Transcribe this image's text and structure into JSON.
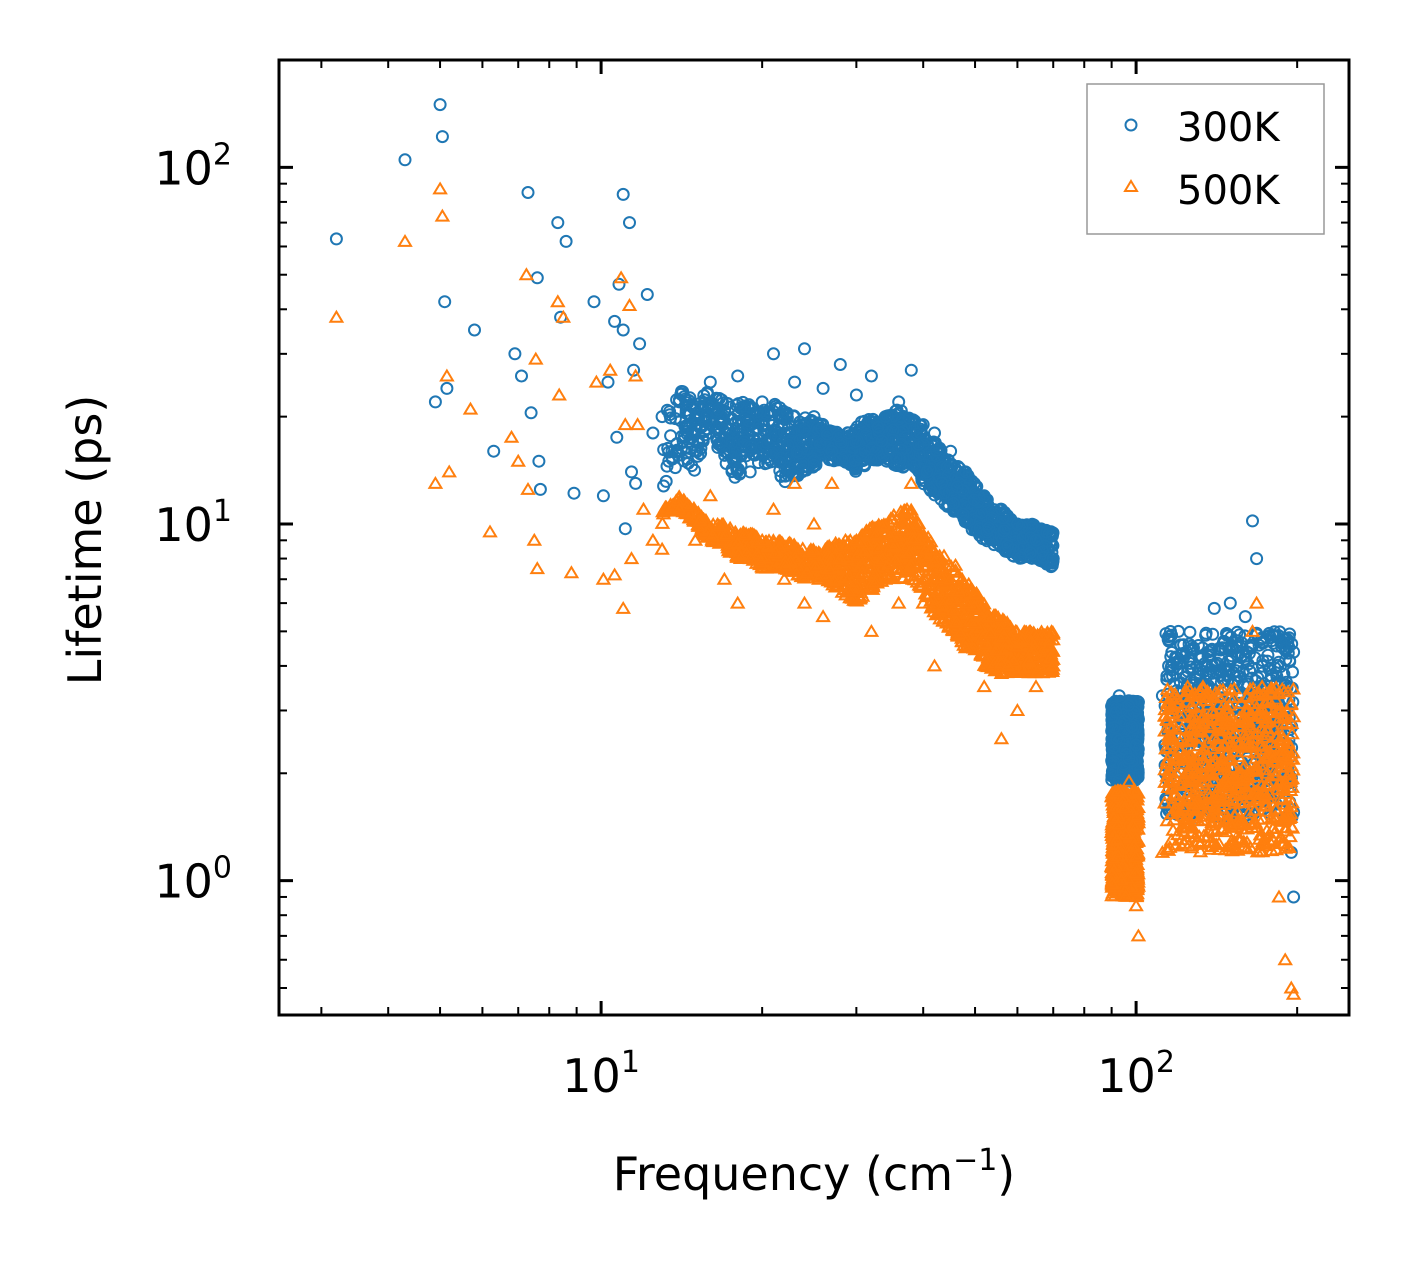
{
  "chart_data": {
    "type": "scatter",
    "xlabel": "Frequency (cm",
    "xlabel_sup": "−1",
    "xlabel_end": ")",
    "ylabel": "Lifetime (ps)",
    "xscale": "log",
    "yscale": "log",
    "xlim": [
      2.5,
      250
    ],
    "ylim": [
      0.42,
      200
    ],
    "x_ticks": [
      {
        "base": "10",
        "exp": "1",
        "value": 10
      },
      {
        "base": "10",
        "exp": "2",
        "value": 100
      }
    ],
    "y_ticks": [
      {
        "base": "10",
        "exp": "0",
        "value": 1
      },
      {
        "base": "10",
        "exp": "1",
        "value": 10
      },
      {
        "base": "10",
        "exp": "2",
        "value": 100
      }
    ],
    "legend_position": "top-right",
    "series": [
      {
        "name": "300K",
        "marker": "circle",
        "color": "#1f77b4",
        "points": [
          [
            3.2,
            63
          ],
          [
            4.3,
            105
          ],
          [
            4.9,
            22
          ],
          [
            5.0,
            150
          ],
          [
            5.05,
            122
          ],
          [
            5.1,
            42
          ],
          [
            5.15,
            24
          ],
          [
            5.8,
            35
          ],
          [
            6.3,
            16
          ],
          [
            6.9,
            30
          ],
          [
            7.1,
            26
          ],
          [
            7.3,
            85
          ],
          [
            7.4,
            20.5
          ],
          [
            7.6,
            49
          ],
          [
            7.65,
            15
          ],
          [
            7.7,
            12.5
          ],
          [
            8.3,
            70
          ],
          [
            8.4,
            38
          ],
          [
            8.6,
            62
          ],
          [
            8.9,
            12.2
          ],
          [
            9.7,
            42
          ],
          [
            10.1,
            12
          ],
          [
            10.3,
            25
          ],
          [
            10.6,
            37
          ],
          [
            10.7,
            17.5
          ],
          [
            10.8,
            47
          ],
          [
            11.0,
            84
          ],
          [
            11.0,
            35
          ],
          [
            11.1,
            9.7
          ],
          [
            11.3,
            70
          ],
          [
            11.4,
            14
          ],
          [
            11.5,
            27
          ],
          [
            11.6,
            13
          ],
          [
            11.8,
            32
          ],
          [
            12.2,
            44
          ],
          [
            12.5,
            18
          ],
          [
            13,
            20
          ],
          [
            14,
            22
          ],
          [
            15,
            19
          ],
          [
            16,
            25
          ],
          [
            17,
            16
          ],
          [
            18,
            26
          ],
          [
            19,
            14
          ],
          [
            20,
            22
          ],
          [
            21,
            30
          ],
          [
            22,
            18
          ],
          [
            23,
            25
          ],
          [
            24,
            31
          ],
          [
            25,
            20
          ],
          [
            26,
            24
          ],
          [
            27,
            16
          ],
          [
            28,
            28
          ],
          [
            29,
            18
          ],
          [
            30,
            23
          ],
          [
            32,
            26
          ],
          [
            34,
            20
          ],
          [
            36,
            22
          ],
          [
            38,
            27
          ],
          [
            40,
            19
          ],
          [
            42,
            18
          ],
          [
            45,
            16
          ],
          [
            48,
            14
          ],
          [
            52,
            12
          ],
          [
            56,
            11
          ],
          [
            60,
            10
          ],
          [
            65,
            9
          ],
          [
            68,
            9.5
          ],
          [
            70,
            8
          ],
          [
            92,
            2.5
          ],
          [
            93,
            3.3
          ],
          [
            95,
            2.8
          ],
          [
            97,
            2.2
          ],
          [
            100,
            2.4
          ],
          [
            112,
            3.3
          ],
          [
            115,
            4
          ],
          [
            118,
            3
          ],
          [
            120,
            5
          ],
          [
            125,
            3.5
          ],
          [
            130,
            4
          ],
          [
            135,
            3.8
          ],
          [
            140,
            5.8
          ],
          [
            145,
            4.5
          ],
          [
            150,
            6
          ],
          [
            155,
            4
          ],
          [
            160,
            5.5
          ],
          [
            165,
            10.2
          ],
          [
            168,
            8
          ],
          [
            172,
            4.8
          ],
          [
            176,
            3.5
          ],
          [
            180,
            2.8
          ],
          [
            185,
            2.4
          ],
          [
            190,
            1.6
          ],
          [
            195,
            1.2
          ],
          [
            197,
            0.9
          ]
        ],
        "bands": [
          [
            [
              13,
              12
            ],
            [
              14,
              15
            ],
            [
              15,
              14
            ],
            [
              16,
              18
            ],
            [
              17,
              15
            ],
            [
              18,
              13
            ],
            [
              19,
              16
            ],
            [
              20,
              14
            ],
            [
              21,
              15
            ],
            [
              22,
              13
            ],
            [
              24,
              14
            ],
            [
              26,
              15
            ],
            [
              28,
              15
            ],
            [
              30,
              14
            ],
            [
              32,
              15
            ],
            [
              34,
              15
            ],
            [
              36,
              14
            ],
            [
              38,
              15
            ],
            [
              40,
              13
            ],
            [
              42,
              12
            ],
            [
              45,
              11
            ],
            [
              48,
              10
            ],
            [
              52,
              9
            ],
            [
              56,
              8.5
            ],
            [
              60,
              8
            ],
            [
              65,
              8
            ],
            [
              70,
              7.5
            ]
          ],
          [
            [
              13,
              20
            ],
            [
              14,
              24
            ],
            [
              15,
              22
            ],
            [
              16,
              24
            ],
            [
              17,
              22
            ],
            [
              18,
              22
            ],
            [
              19,
              22
            ],
            [
              20,
              21
            ],
            [
              21,
              22
            ],
            [
              22,
              21
            ],
            [
              24,
              20
            ],
            [
              26,
              19
            ],
            [
              28,
              18
            ],
            [
              30,
              19
            ],
            [
              32,
              20
            ],
            [
              34,
              20
            ],
            [
              36,
              21
            ],
            [
              38,
              20
            ],
            [
              40,
              19
            ],
            [
              42,
              17
            ],
            [
              45,
              15
            ],
            [
              48,
              14
            ],
            [
              52,
              12
            ],
            [
              56,
              11
            ],
            [
              60,
              10
            ],
            [
              65,
              10
            ],
            [
              70,
              9.5
            ]
          ]
        ],
        "clusters": [
          {
            "x": [
              90,
              101
            ],
            "y": [
              1.9,
              3.2
            ]
          },
          {
            "x": [
              113,
              197
            ],
            "y": [
              1.5,
              5.0
            ]
          }
        ]
      },
      {
        "name": "500K",
        "marker": "triangle",
        "color": "#ff7f0e",
        "points": [
          [
            3.2,
            38
          ],
          [
            4.3,
            62
          ],
          [
            4.9,
            13
          ],
          [
            5.0,
            87
          ],
          [
            5.05,
            73
          ],
          [
            5.15,
            26
          ],
          [
            5.2,
            14
          ],
          [
            5.7,
            21
          ],
          [
            6.2,
            9.5
          ],
          [
            6.8,
            17.5
          ],
          [
            7.0,
            15
          ],
          [
            7.25,
            50
          ],
          [
            7.3,
            12.5
          ],
          [
            7.5,
            9
          ],
          [
            7.55,
            29
          ],
          [
            7.6,
            7.5
          ],
          [
            8.3,
            42
          ],
          [
            8.35,
            23
          ],
          [
            8.5,
            38
          ],
          [
            8.8,
            7.3
          ],
          [
            9.8,
            25
          ],
          [
            10.1,
            7
          ],
          [
            10.4,
            27
          ],
          [
            10.6,
            7.2
          ],
          [
            10.9,
            49
          ],
          [
            11.0,
            5.8
          ],
          [
            11.1,
            19
          ],
          [
            11.3,
            41
          ],
          [
            11.4,
            8
          ],
          [
            11.6,
            26
          ],
          [
            11.7,
            19
          ],
          [
            12.0,
            11
          ],
          [
            12.5,
            9
          ],
          [
            13,
            8.5
          ],
          [
            14,
            11
          ],
          [
            15,
            9
          ],
          [
            16,
            12
          ],
          [
            17,
            7
          ],
          [
            18,
            6
          ],
          [
            19,
            8
          ],
          [
            20,
            9
          ],
          [
            21,
            11
          ],
          [
            22,
            7
          ],
          [
            23,
            13
          ],
          [
            24,
            6
          ],
          [
            25,
            10
          ],
          [
            26,
            5.5
          ],
          [
            27,
            13
          ],
          [
            28,
            8
          ],
          [
            29,
            6.5
          ],
          [
            30,
            9
          ],
          [
            32,
            5
          ],
          [
            34,
            7
          ],
          [
            36,
            6
          ],
          [
            38,
            13
          ],
          [
            40,
            6
          ],
          [
            42,
            4
          ],
          [
            45,
            7
          ],
          [
            48,
            4.5
          ],
          [
            52,
            3.5
          ],
          [
            56,
            2.5
          ],
          [
            60,
            3
          ],
          [
            65,
            3.5
          ],
          [
            70,
            4
          ],
          [
            92,
            1.3
          ],
          [
            95,
            1.6
          ],
          [
            97,
            1.9
          ],
          [
            100,
            0.85
          ],
          [
            101,
            0.7
          ],
          [
            112,
            1.2
          ],
          [
            118,
            2.2
          ],
          [
            125,
            1.5
          ],
          [
            130,
            2
          ],
          [
            135,
            3.2
          ],
          [
            140,
            2.5
          ],
          [
            150,
            2.8
          ],
          [
            160,
            3
          ],
          [
            165,
            5
          ],
          [
            168,
            6
          ],
          [
            172,
            3.5
          ],
          [
            176,
            2
          ],
          [
            180,
            1.4
          ],
          [
            185,
            0.9
          ],
          [
            190,
            0.6
          ],
          [
            195,
            0.5
          ],
          [
            197,
            0.48
          ]
        ],
        "bands": [
          [
            [
              13,
              10
            ],
            [
              14,
              11
            ],
            [
              15,
              10
            ],
            [
              16,
              9
            ],
            [
              17,
              8.5
            ],
            [
              18,
              8
            ],
            [
              19,
              8
            ],
            [
              20,
              7.5
            ],
            [
              21,
              7.5
            ],
            [
              22,
              7.5
            ],
            [
              24,
              7
            ],
            [
              26,
              7
            ],
            [
              28,
              6.5
            ],
            [
              30,
              6
            ],
            [
              32,
              6.5
            ],
            [
              34,
              7
            ],
            [
              36,
              7
            ],
            [
              38,
              7
            ],
            [
              40,
              6.5
            ],
            [
              42,
              5.5
            ],
            [
              45,
              5
            ],
            [
              48,
              4.5
            ],
            [
              52,
              4
            ],
            [
              56,
              3.8
            ],
            [
              60,
              3.8
            ],
            [
              65,
              3.8
            ],
            [
              70,
              3.8
            ]
          ],
          [
            [
              13,
              11
            ],
            [
              14,
              12
            ],
            [
              15,
              11
            ],
            [
              16,
              10
            ],
            [
              17,
              10
            ],
            [
              18,
              9.5
            ],
            [
              19,
              9.5
            ],
            [
              20,
              9
            ],
            [
              21,
              9
            ],
            [
              22,
              9
            ],
            [
              24,
              8.5
            ],
            [
              26,
              8.5
            ],
            [
              28,
              9
            ],
            [
              30,
              9
            ],
            [
              32,
              10
            ],
            [
              34,
              10
            ],
            [
              36,
              11
            ],
            [
              38,
              11
            ],
            [
              40,
              10
            ],
            [
              42,
              8.5
            ],
            [
              45,
              8
            ],
            [
              48,
              7
            ],
            [
              52,
              6
            ],
            [
              56,
              5.5
            ],
            [
              60,
              5
            ],
            [
              65,
              5
            ],
            [
              70,
              5
            ]
          ]
        ],
        "clusters": [
          {
            "x": [
              90,
              101
            ],
            "y": [
              0.9,
              1.8
            ]
          },
          {
            "x": [
              113,
              197
            ],
            "y": [
              1.2,
              3.5
            ]
          }
        ]
      }
    ]
  }
}
